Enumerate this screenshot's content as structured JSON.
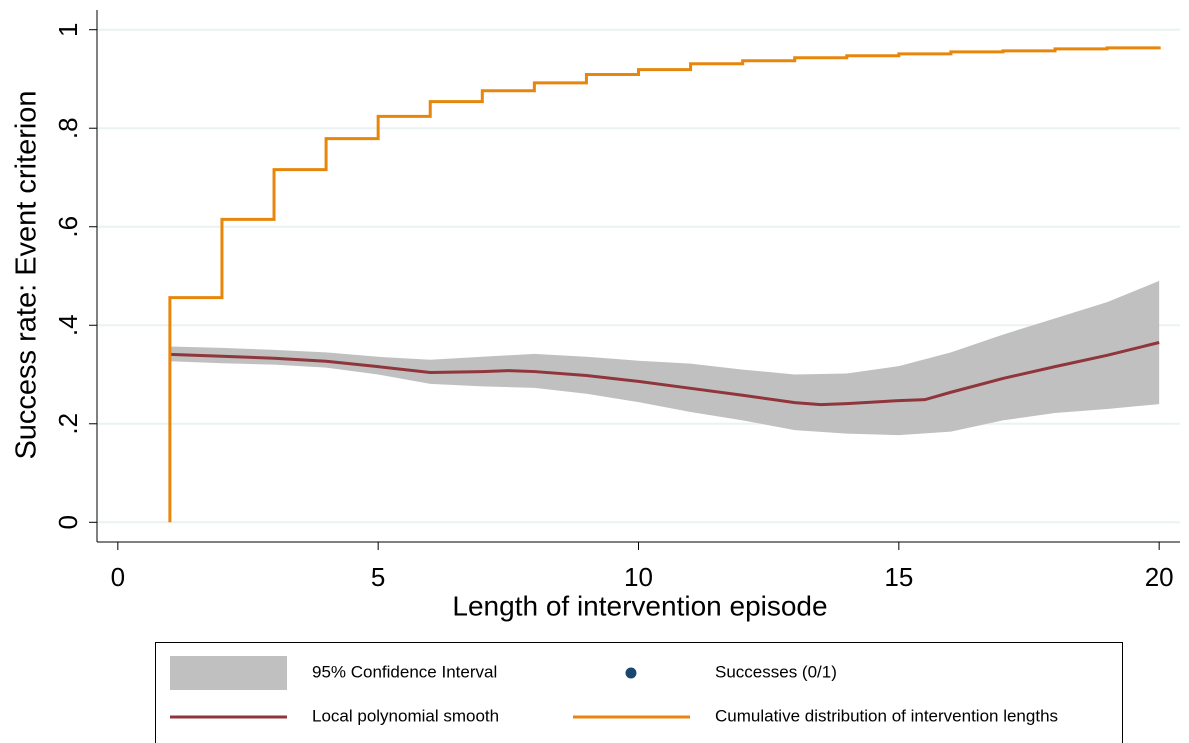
{
  "chart_data": {
    "type": "line",
    "y_label": "Success rate: Event criterion",
    "x_label": "Length of intervention episode",
    "xlim": [
      -0.4,
      20.4
    ],
    "ylim": [
      -0.04,
      1.04
    ],
    "xticks": [
      0,
      5,
      10,
      15,
      20
    ],
    "yticks": [
      0,
      {
        "value": 0.2,
        "label": ".2"
      },
      {
        "value": 0.4,
        "label": ".4"
      },
      {
        "value": 0.6,
        "label": ".6"
      },
      {
        "value": 0.8,
        "label": ".8"
      },
      1
    ],
    "grid": true,
    "series": [
      {
        "name": "95% Confidence Interval",
        "kind": "band",
        "color": "#c0c0c0",
        "x": [
          1,
          2,
          3,
          4,
          5,
          6,
          7,
          8,
          9,
          10,
          11,
          12,
          13,
          14,
          15,
          16,
          17,
          18,
          19,
          20
        ],
        "lower": [
          0.327,
          0.323,
          0.32,
          0.314,
          0.3,
          0.281,
          0.276,
          0.273,
          0.261,
          0.244,
          0.224,
          0.207,
          0.187,
          0.18,
          0.177,
          0.184,
          0.207,
          0.222,
          0.23,
          0.24
        ],
        "upper": [
          0.357,
          0.354,
          0.35,
          0.345,
          0.336,
          0.33,
          0.336,
          0.342,
          0.336,
          0.328,
          0.322,
          0.31,
          0.3,
          0.302,
          0.317,
          0.345,
          0.381,
          0.414,
          0.447,
          0.49
        ]
      },
      {
        "name": "Successes (0/1)",
        "kind": "scatter",
        "color": "#1a476f",
        "x": [],
        "values": []
      },
      {
        "name": "Local polynomial smooth",
        "kind": "line",
        "color": "#90353b",
        "x": [
          1,
          2,
          3,
          4,
          5,
          6,
          7,
          7.5,
          8,
          9,
          10,
          11,
          12,
          13,
          13.5,
          14,
          15,
          15.5,
          16,
          17,
          18,
          19,
          20
        ],
        "values": [
          0.341,
          0.337,
          0.333,
          0.327,
          0.316,
          0.304,
          0.306,
          0.308,
          0.306,
          0.298,
          0.286,
          0.272,
          0.258,
          0.243,
          0.239,
          0.241,
          0.247,
          0.249,
          0.264,
          0.292,
          0.316,
          0.339,
          0.365
        ]
      },
      {
        "name": "Cumulative distribution of intervention lengths",
        "kind": "step",
        "color": "#e8860c",
        "x": [
          1,
          1,
          2,
          3,
          4,
          5,
          6,
          7,
          8,
          9,
          10,
          11,
          12,
          13,
          14,
          15,
          16,
          17,
          18,
          19,
          20
        ],
        "values": [
          0,
          0.456,
          0.615,
          0.716,
          0.779,
          0.824,
          0.854,
          0.876,
          0.892,
          0.909,
          0.919,
          0.931,
          0.937,
          0.943,
          0.947,
          0.951,
          0.955,
          0.957,
          0.961,
          0.963,
          0.966
        ]
      }
    ]
  }
}
